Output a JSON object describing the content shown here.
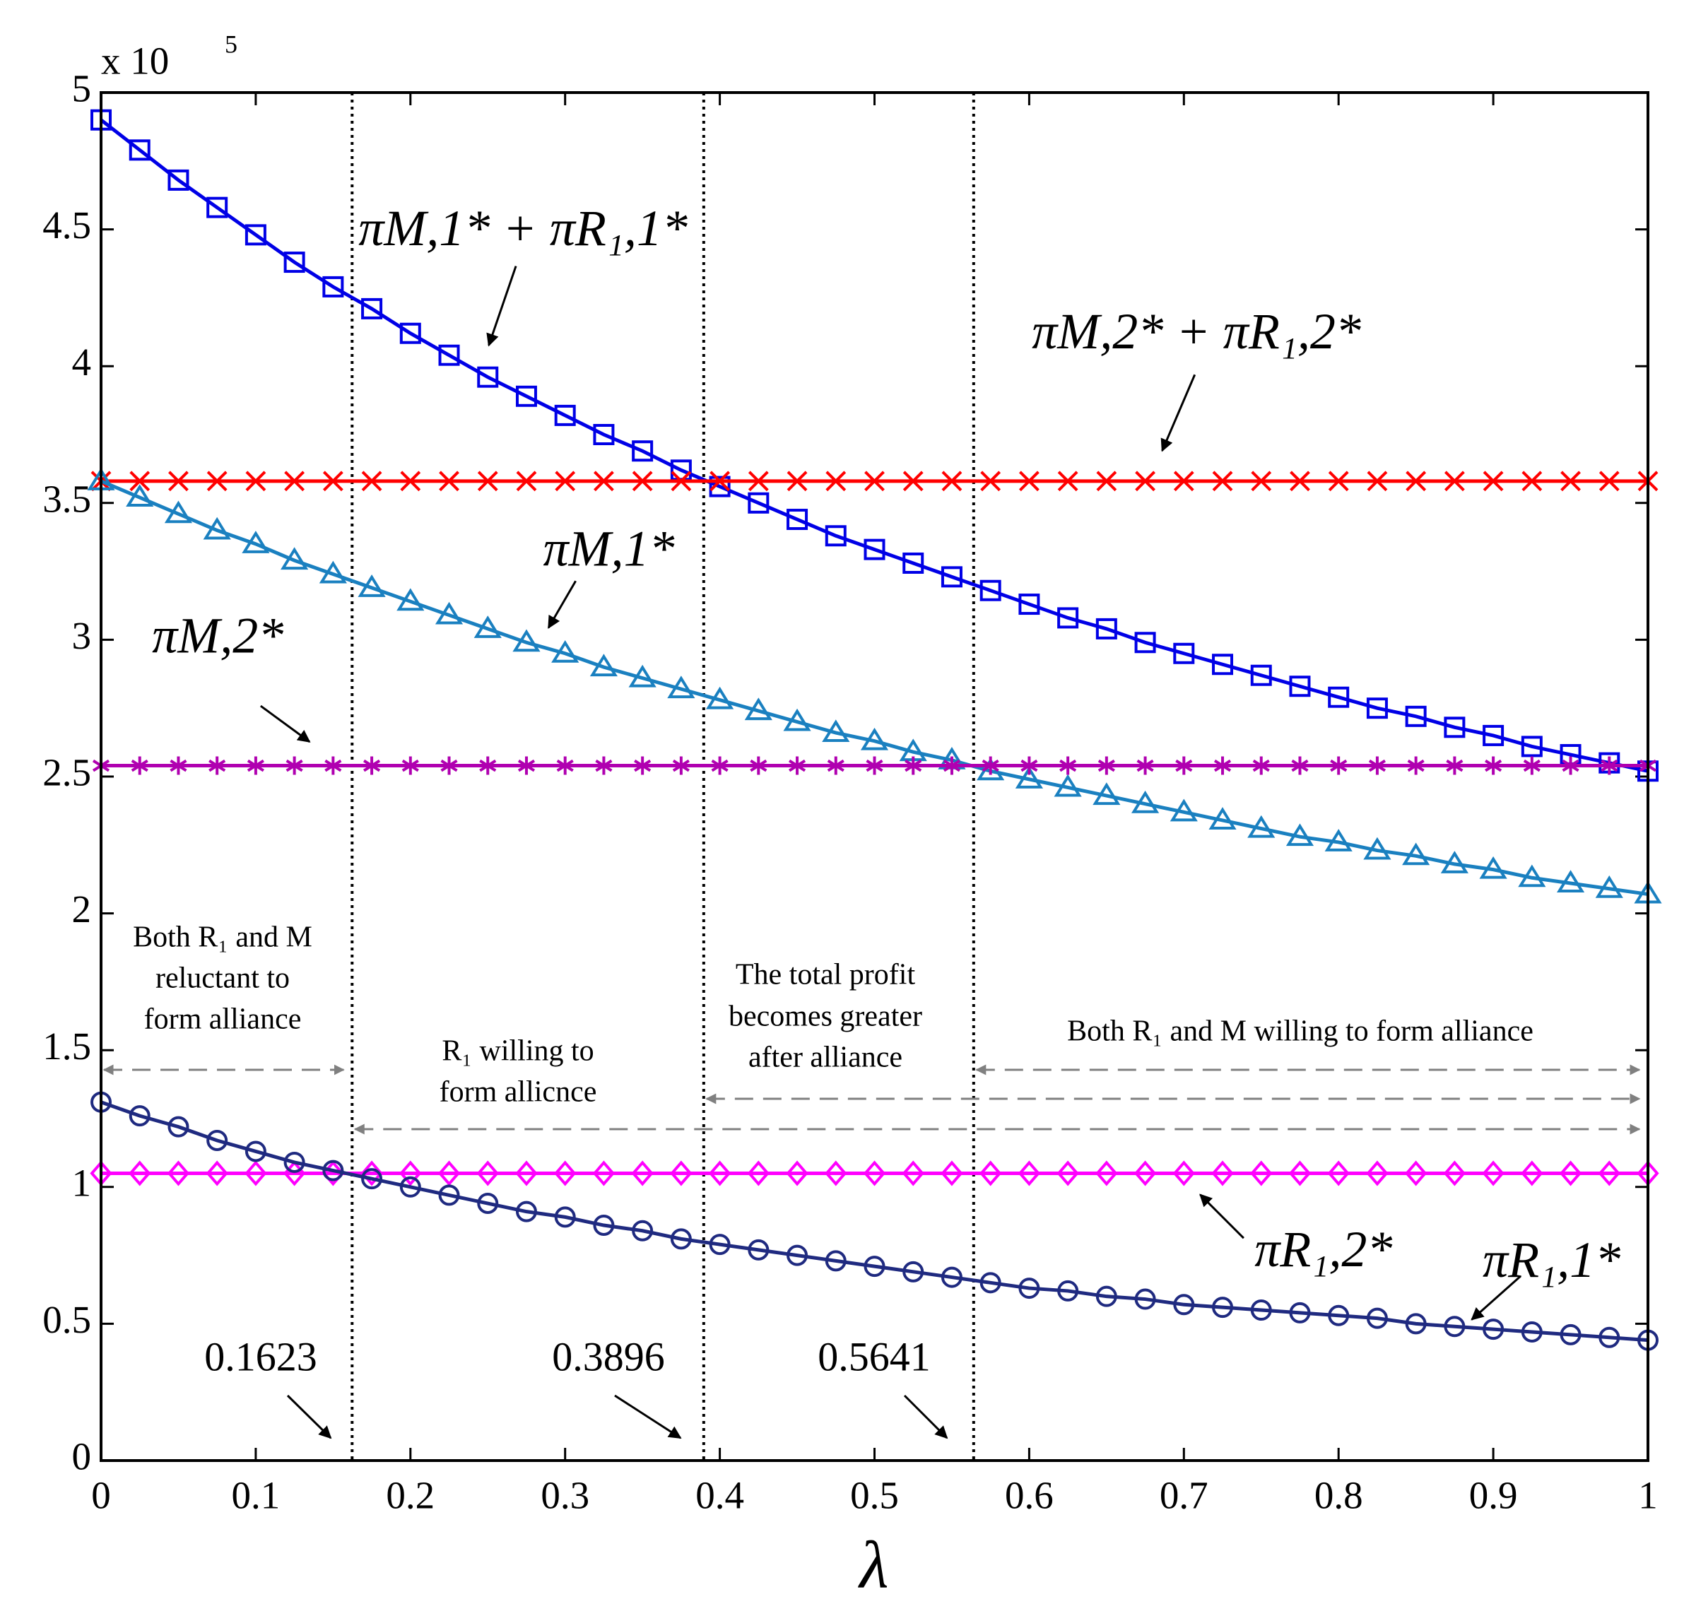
{
  "chart_data": {
    "type": "line",
    "y_multiplier": "x 10",
    "y_exponent": "5",
    "x_label": "λ",
    "x": [
      0,
      0.025,
      0.05,
      0.075,
      0.1,
      0.125,
      0.15,
      0.175,
      0.2,
      0.225,
      0.25,
      0.275,
      0.3,
      0.325,
      0.35,
      0.375,
      0.4,
      0.425,
      0.45,
      0.475,
      0.5,
      0.525,
      0.55,
      0.575,
      0.6,
      0.625,
      0.65,
      0.675,
      0.7,
      0.725,
      0.75,
      0.775,
      0.8,
      0.825,
      0.85,
      0.875,
      0.9,
      0.925,
      0.95,
      0.975,
      1
    ],
    "xlim": [
      0,
      1
    ],
    "ylim": [
      0,
      5
    ],
    "xticks": [
      0,
      0.1,
      0.2,
      0.3,
      0.4,
      0.5,
      0.6,
      0.7,
      0.8,
      0.9,
      1
    ],
    "yticks": [
      0,
      0.5,
      1,
      1.5,
      2,
      2.5,
      3,
      3.5,
      4,
      4.5,
      5
    ],
    "series": [
      {
        "name": "πM,1* + πR₁,1*",
        "color": "#0000e6",
        "marker": "square",
        "values": [
          4.9,
          4.79,
          4.68,
          4.58,
          4.48,
          4.38,
          4.29,
          4.21,
          4.12,
          4.04,
          3.96,
          3.89,
          3.82,
          3.75,
          3.69,
          3.62,
          3.56,
          3.5,
          3.44,
          3.38,
          3.33,
          3.28,
          3.23,
          3.18,
          3.13,
          3.08,
          3.04,
          2.99,
          2.95,
          2.91,
          2.87,
          2.83,
          2.79,
          2.75,
          2.72,
          2.68,
          2.65,
          2.61,
          2.58,
          2.55,
          2.52
        ]
      },
      {
        "name": "πM,2* + πR₁,2*",
        "color": "#ff0000",
        "marker": "x",
        "values": [
          3.58,
          3.58,
          3.58,
          3.58,
          3.58,
          3.58,
          3.58,
          3.58,
          3.58,
          3.58,
          3.58,
          3.58,
          3.58,
          3.58,
          3.58,
          3.58,
          3.58,
          3.58,
          3.58,
          3.58,
          3.58,
          3.58,
          3.58,
          3.58,
          3.58,
          3.58,
          3.58,
          3.58,
          3.58,
          3.58,
          3.58,
          3.58,
          3.58,
          3.58,
          3.58,
          3.58,
          3.58,
          3.58,
          3.58,
          3.58,
          3.58
        ]
      },
      {
        "name": "πM,1*",
        "color": "#1a80c0",
        "marker": "triangle",
        "values": [
          3.58,
          3.52,
          3.46,
          3.4,
          3.35,
          3.29,
          3.24,
          3.19,
          3.14,
          3.09,
          3.04,
          2.99,
          2.95,
          2.9,
          2.86,
          2.82,
          2.78,
          2.74,
          2.7,
          2.66,
          2.63,
          2.59,
          2.56,
          2.52,
          2.49,
          2.46,
          2.43,
          2.4,
          2.37,
          2.34,
          2.31,
          2.28,
          2.26,
          2.23,
          2.21,
          2.18,
          2.16,
          2.13,
          2.11,
          2.09,
          2.07
        ]
      },
      {
        "name": "πM,2*",
        "color": "#b000b0",
        "marker": "star",
        "values": [
          2.54,
          2.54,
          2.54,
          2.54,
          2.54,
          2.54,
          2.54,
          2.54,
          2.54,
          2.54,
          2.54,
          2.54,
          2.54,
          2.54,
          2.54,
          2.54,
          2.54,
          2.54,
          2.54,
          2.54,
          2.54,
          2.54,
          2.54,
          2.54,
          2.54,
          2.54,
          2.54,
          2.54,
          2.54,
          2.54,
          2.54,
          2.54,
          2.54,
          2.54,
          2.54,
          2.54,
          2.54,
          2.54,
          2.54,
          2.54,
          2.54
        ]
      },
      {
        "name": "πR₁,2*",
        "color": "#ff00ff",
        "marker": "diamond",
        "values": [
          1.05,
          1.05,
          1.05,
          1.05,
          1.05,
          1.05,
          1.05,
          1.05,
          1.05,
          1.05,
          1.05,
          1.05,
          1.05,
          1.05,
          1.05,
          1.05,
          1.05,
          1.05,
          1.05,
          1.05,
          1.05,
          1.05,
          1.05,
          1.05,
          1.05,
          1.05,
          1.05,
          1.05,
          1.05,
          1.05,
          1.05,
          1.05,
          1.05,
          1.05,
          1.05,
          1.05,
          1.05,
          1.05,
          1.05,
          1.05,
          1.05
        ]
      },
      {
        "name": "πR₁,1*",
        "color": "#1f2a80",
        "marker": "circle",
        "values": [
          1.31,
          1.26,
          1.22,
          1.17,
          1.13,
          1.09,
          1.06,
          1.03,
          1.0,
          0.97,
          0.94,
          0.91,
          0.89,
          0.86,
          0.84,
          0.81,
          0.79,
          0.77,
          0.75,
          0.73,
          0.71,
          0.69,
          0.67,
          0.65,
          0.63,
          0.62,
          0.6,
          0.59,
          0.57,
          0.56,
          0.55,
          0.54,
          0.53,
          0.52,
          0.5,
          0.49,
          0.48,
          0.47,
          0.46,
          0.45,
          0.44
        ]
      }
    ],
    "vlines": [
      0.1623,
      0.3896,
      0.5641
    ],
    "annotations": [
      {
        "lines": [
          "Both R₁ and M",
          "reluctant to",
          "form alliance"
        ]
      },
      {
        "lines": [
          "R₁ willing to",
          "form allicnce"
        ]
      },
      {
        "lines": [
          "The total profit",
          "becomes greater",
          "after alliance"
        ]
      },
      {
        "lines": [
          "Both R₁ and M willing to form alliance"
        ]
      }
    ]
  }
}
